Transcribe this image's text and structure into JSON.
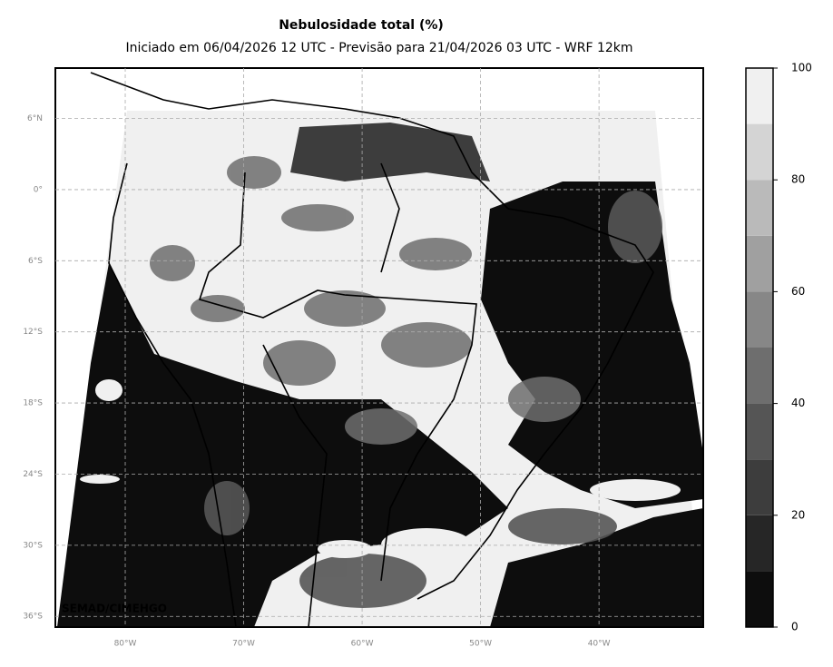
{
  "chart_data": {
    "type": "map",
    "title": "Nebulosidade total (%)",
    "subtitle": "Iniciado em 06/04/2026 12 UTC - Previsão para 21/04/2026 03 UTC - WRF 12km",
    "credit": "SEMAD/CIMEHGO",
    "xlim": [
      -85.9,
      -31.2
    ],
    "ylim": [
      -36.9,
      10.25
    ],
    "xticks": [
      {
        "value": -80,
        "label": "80°W"
      },
      {
        "value": -70,
        "label": "70°W"
      },
      {
        "value": -60,
        "label": "60°W"
      },
      {
        "value": -50,
        "label": "50°W"
      },
      {
        "value": -40,
        "label": "40°W"
      }
    ],
    "yticks": [
      {
        "value": 6,
        "label": "6°N"
      },
      {
        "value": 0,
        "label": "0°"
      },
      {
        "value": -6,
        "label": "6°S"
      },
      {
        "value": -12,
        "label": "12°S"
      },
      {
        "value": -18,
        "label": "18°S"
      },
      {
        "value": -24,
        "label": "24°S"
      },
      {
        "value": -30,
        "label": "30°S"
      },
      {
        "value": -36,
        "label": "36°S"
      }
    ],
    "grid": true,
    "colorbar": {
      "lim": [
        0,
        100
      ],
      "ticks": [
        0,
        20,
        40,
        60,
        80,
        100
      ],
      "bounds": [
        0,
        10,
        20,
        30,
        40,
        50,
        60,
        70,
        80,
        90,
        100
      ],
      "colors": [
        "#0d0d0d",
        "#262626",
        "#3d3d3d",
        "#555555",
        "#6e6e6e",
        "#878787",
        "#a0a0a0",
        "#bababa",
        "#d4d4d4",
        "#f0f0f0"
      ]
    }
  }
}
